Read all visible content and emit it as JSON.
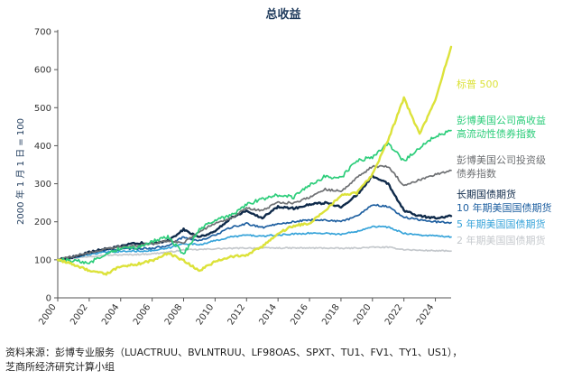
{
  "chart_data": {
    "type": "line",
    "title": "总收益",
    "ylabel": "2000 年 1 月 1 日 = 100",
    "xlim": [
      2000,
      2025
    ],
    "ylim": [
      0,
      700
    ],
    "x_ticks": [
      2000,
      2002,
      2004,
      2006,
      2008,
      2010,
      2012,
      2014,
      2016,
      2018,
      2020,
      2022,
      2024
    ],
    "y_ticks": [
      0,
      100,
      200,
      300,
      400,
      500,
      600,
      700
    ],
    "series": [
      {
        "name": "2 年期美国国债期货",
        "color": "#c4c8cc",
        "label_lines": [
          "2 年期美国国债期货"
        ],
        "points": [
          [
            2000,
            100
          ],
          [
            2001,
            104
          ],
          [
            2002,
            109
          ],
          [
            2003,
            112
          ],
          [
            2004,
            113
          ],
          [
            2005,
            114
          ],
          [
            2006,
            116
          ],
          [
            2007,
            120
          ],
          [
            2008,
            126
          ],
          [
            2009,
            127
          ],
          [
            2010,
            129
          ],
          [
            2011,
            130
          ],
          [
            2012,
            131
          ],
          [
            2013,
            131
          ],
          [
            2014,
            131
          ],
          [
            2015,
            131
          ],
          [
            2016,
            131
          ],
          [
            2017,
            131
          ],
          [
            2018,
            130
          ],
          [
            2019,
            131
          ],
          [
            2020,
            133
          ],
          [
            2021,
            133
          ],
          [
            2022,
            127
          ],
          [
            2023,
            125
          ],
          [
            2024,
            124
          ],
          [
            2025,
            123
          ]
        ]
      },
      {
        "name": "5 年期美国国债期货",
        "color": "#36a3d9",
        "label_lines": [
          "5 年期美国国债期货"
        ],
        "points": [
          [
            2000,
            100
          ],
          [
            2001,
            106
          ],
          [
            2002,
            114
          ],
          [
            2003,
            120
          ],
          [
            2004,
            122
          ],
          [
            2005,
            123
          ],
          [
            2006,
            124
          ],
          [
            2007,
            130
          ],
          [
            2008,
            143
          ],
          [
            2009,
            140
          ],
          [
            2010,
            150
          ],
          [
            2011,
            160
          ],
          [
            2012,
            165
          ],
          [
            2013,
            162
          ],
          [
            2014,
            165
          ],
          [
            2015,
            168
          ],
          [
            2016,
            170
          ],
          [
            2017,
            170
          ],
          [
            2018,
            167
          ],
          [
            2019,
            175
          ],
          [
            2020,
            188
          ],
          [
            2021,
            186
          ],
          [
            2022,
            170
          ],
          [
            2023,
            165
          ],
          [
            2024,
            163
          ],
          [
            2025,
            160
          ]
        ]
      },
      {
        "name": "10 年期美国国债期货",
        "color": "#1e5fa0",
        "label_lines": [
          "10 年期美国国债期货"
        ],
        "points": [
          [
            2000,
            100
          ],
          [
            2001,
            106
          ],
          [
            2002,
            118
          ],
          [
            2003,
            125
          ],
          [
            2004,
            128
          ],
          [
            2005,
            130
          ],
          [
            2006,
            130
          ],
          [
            2007,
            138
          ],
          [
            2008,
            160
          ],
          [
            2009,
            150
          ],
          [
            2010,
            165
          ],
          [
            2011,
            185
          ],
          [
            2012,
            195
          ],
          [
            2013,
            185
          ],
          [
            2014,
            195
          ],
          [
            2015,
            200
          ],
          [
            2016,
            205
          ],
          [
            2017,
            205
          ],
          [
            2018,
            200
          ],
          [
            2019,
            215
          ],
          [
            2020,
            245
          ],
          [
            2021,
            240
          ],
          [
            2022,
            212
          ],
          [
            2023,
            205
          ],
          [
            2024,
            200
          ],
          [
            2025,
            198
          ]
        ]
      },
      {
        "name": "长期国债期货",
        "color": "#0f2a4a",
        "label_lines": [
          "长期国债期货"
        ],
        "points": [
          [
            2000,
            100
          ],
          [
            2001,
            108
          ],
          [
            2002,
            120
          ],
          [
            2003,
            128
          ],
          [
            2004,
            135
          ],
          [
            2005,
            145
          ],
          [
            2006,
            142
          ],
          [
            2007,
            150
          ],
          [
            2008,
            180
          ],
          [
            2009,
            160
          ],
          [
            2010,
            175
          ],
          [
            2011,
            210
          ],
          [
            2012,
            230
          ],
          [
            2013,
            210
          ],
          [
            2014,
            240
          ],
          [
            2015,
            235
          ],
          [
            2016,
            245
          ],
          [
            2017,
            250
          ],
          [
            2018,
            240
          ],
          [
            2019,
            270
          ],
          [
            2020,
            320
          ],
          [
            2021,
            300
          ],
          [
            2022,
            230
          ],
          [
            2023,
            215
          ],
          [
            2024,
            210
          ],
          [
            2025,
            215
          ]
        ]
      },
      {
        "name": "彭博美国公司投资级债券指数",
        "color": "#6e7073",
        "label_lines": [
          "彭博美国公司投资级",
          "债券指数"
        ],
        "points": [
          [
            2000,
            100
          ],
          [
            2001,
            110
          ],
          [
            2002,
            118
          ],
          [
            2003,
            128
          ],
          [
            2004,
            134
          ],
          [
            2005,
            138
          ],
          [
            2006,
            143
          ],
          [
            2007,
            150
          ],
          [
            2008,
            145
          ],
          [
            2009,
            175
          ],
          [
            2010,
            195
          ],
          [
            2011,
            210
          ],
          [
            2012,
            235
          ],
          [
            2013,
            230
          ],
          [
            2014,
            250
          ],
          [
            2015,
            250
          ],
          [
            2016,
            265
          ],
          [
            2017,
            285
          ],
          [
            2018,
            280
          ],
          [
            2019,
            315
          ],
          [
            2020,
            345
          ],
          [
            2021,
            345
          ],
          [
            2022,
            295
          ],
          [
            2023,
            310
          ],
          [
            2024,
            325
          ],
          [
            2025,
            335
          ]
        ]
      },
      {
        "name": "彭博美国公司高收益高流动性债券指数",
        "color": "#2ccd7a",
        "label_lines": [
          "彭博美国公司高收益",
          "高流动性债券指数"
        ],
        "points": [
          [
            2000,
            100
          ],
          [
            2001,
            98
          ],
          [
            2002,
            92
          ],
          [
            2003,
            115
          ],
          [
            2004,
            130
          ],
          [
            2005,
            133
          ],
          [
            2006,
            148
          ],
          [
            2007,
            160
          ],
          [
            2008,
            115
          ],
          [
            2009,
            180
          ],
          [
            2010,
            205
          ],
          [
            2011,
            215
          ],
          [
            2012,
            245
          ],
          [
            2013,
            260
          ],
          [
            2014,
            270
          ],
          [
            2015,
            265
          ],
          [
            2016,
            295
          ],
          [
            2017,
            320
          ],
          [
            2018,
            315
          ],
          [
            2019,
            360
          ],
          [
            2020,
            370
          ],
          [
            2021,
            405
          ],
          [
            2022,
            360
          ],
          [
            2023,
            395
          ],
          [
            2024,
            425
          ],
          [
            2025,
            440
          ]
        ]
      },
      {
        "name": "标普 500",
        "color": "#dce23a",
        "label_lines": [
          "标普 500"
        ],
        "points": [
          [
            2000,
            100
          ],
          [
            2001,
            88
          ],
          [
            2002,
            72
          ],
          [
            2003,
            62
          ],
          [
            2004,
            82
          ],
          [
            2005,
            88
          ],
          [
            2006,
            98
          ],
          [
            2007,
            118
          ],
          [
            2008,
            98
          ],
          [
            2009,
            72
          ],
          [
            2010,
            95
          ],
          [
            2011,
            108
          ],
          [
            2012,
            112
          ],
          [
            2013,
            135
          ],
          [
            2014,
            170
          ],
          [
            2015,
            190
          ],
          [
            2016,
            195
          ],
          [
            2017,
            230
          ],
          [
            2018,
            270
          ],
          [
            2019,
            275
          ],
          [
            2020,
            325
          ],
          [
            2021,
            415
          ],
          [
            2022,
            525
          ],
          [
            2023,
            430
          ],
          [
            2024,
            520
          ],
          [
            2025,
            660
          ]
        ]
      }
    ]
  },
  "source_lines": [
    "资料来源：彭博专业服务（LUACTRUU、BVLNTRUU、LF98OAS、SPXT、TU1、FV1、TY1、US1），",
    "芝商所经济研究计算小组"
  ]
}
